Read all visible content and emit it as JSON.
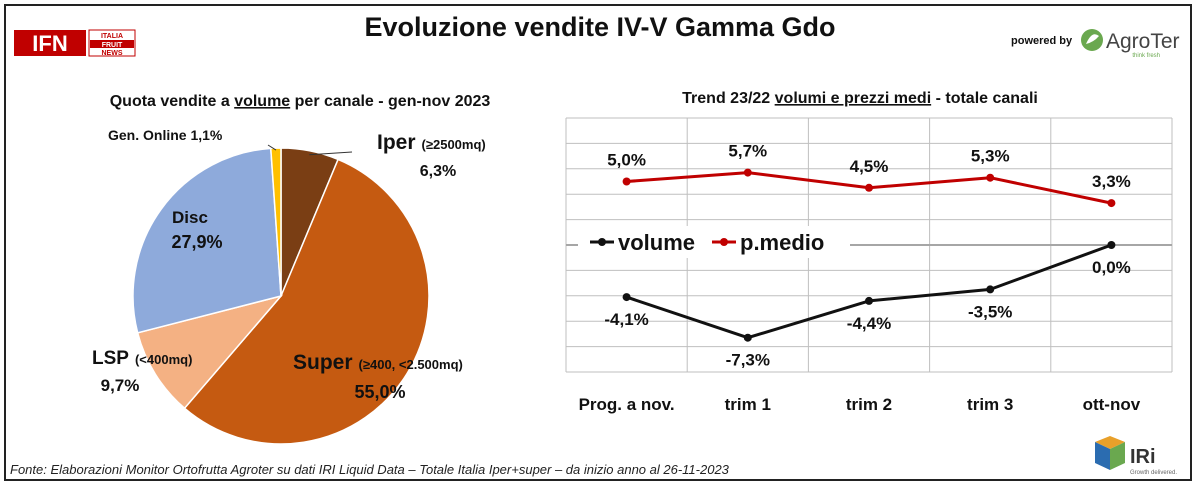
{
  "header": {
    "title": "Evoluzione vendite IV-V Gamma Gdo",
    "logo_ifn": {
      "main": "IFN",
      "line1": "ITALIA",
      "line2": "FRUIT",
      "line3": "NEWS"
    },
    "powered_by": "powered by",
    "logo_agroter": {
      "name": "AgroTer",
      "tagline": "think fresh"
    }
  },
  "footer": {
    "source": "Fonte: Elaborazioni Monitor Ortofrutta Agroter su dati IRI Liquid Data – Totale Italia Iper+super –  da inizio anno al 26-11-2023",
    "iri_logo": {
      "name": "IRi",
      "tagline": "Growth delivered."
    }
  },
  "colors": {
    "iper": "#7a3e14",
    "super": "#c55a11",
    "lsp": "#f4b183",
    "disc": "#8eaadb",
    "online": "#ffc000",
    "volume": "#111111",
    "prezzo": "#c00000"
  },
  "chart_data": [
    {
      "type": "pie",
      "title_parts": [
        "Quota vendite a ",
        "volume",
        " per canale - gen-nov 2023"
      ],
      "slices": [
        {
          "name": "Iper",
          "qualifier": "(≥2500mq)",
          "value": 6.3,
          "label": "6,3%",
          "color": "#7a3e14"
        },
        {
          "name": "Super",
          "qualifier": "(≥400, <2.500mq)",
          "value": 55.0,
          "label": "55,0%",
          "color": "#c55a11"
        },
        {
          "name": "LSP",
          "qualifier": "(<400mq)",
          "value": 9.7,
          "label": "9,7%",
          "color": "#f4b183"
        },
        {
          "name": "Disc",
          "qualifier": "",
          "value": 27.9,
          "label": "27,9%",
          "color": "#8eaadb"
        },
        {
          "name": "Gen. Online",
          "qualifier": "",
          "value": 1.1,
          "label": "1,1%",
          "color": "#ffc000"
        }
      ]
    },
    {
      "type": "line",
      "title_parts": [
        "Trend 23/22 ",
        "volumi e prezzi medi",
        " - totale canali"
      ],
      "categories": [
        "Prog. a nov.",
        "trim 1",
        "trim 2",
        "trim 3",
        "ott-nov"
      ],
      "series": [
        {
          "name": "volume",
          "values": [
            -4.1,
            -7.3,
            -4.4,
            -3.5,
            0.0
          ],
          "labels": [
            "-4,1%",
            "-7,3%",
            "-4,4%",
            "-3,5%",
            "0,0%"
          ],
          "color": "#111111"
        },
        {
          "name": "p.medio",
          "values": [
            5.0,
            5.7,
            4.5,
            5.3,
            3.3
          ],
          "labels": [
            "5,0%",
            "5,7%",
            "4,5%",
            "5,3%",
            "3,3%"
          ],
          "color": "#c00000"
        }
      ],
      "ylim": [
        -10,
        10
      ],
      "grid": true,
      "legend": "center"
    }
  ]
}
